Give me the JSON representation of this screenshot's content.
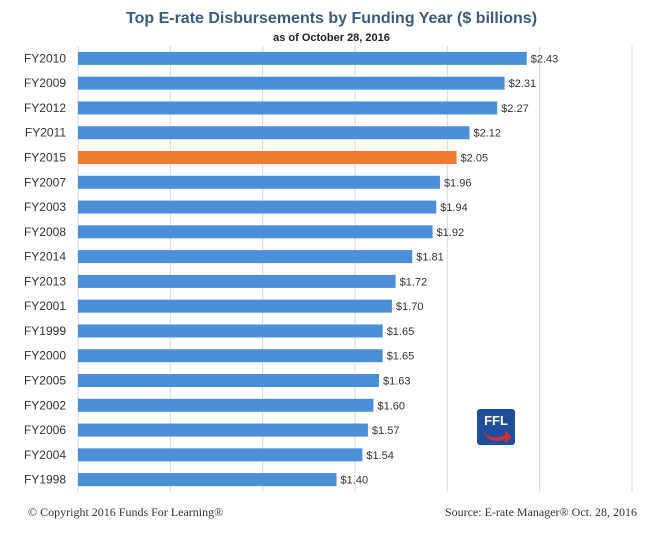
{
  "chart_data": {
    "type": "bar",
    "orientation": "horizontal",
    "title": "Top E-rate Disbursements by Funding Year ($ billions)",
    "subtitle": "as of October 28, 2016",
    "categories": [
      "FY2010",
      "FY2009",
      "FY2012",
      "FY2011",
      "FY2015",
      "FY2007",
      "FY2003",
      "FY2008",
      "FY2014",
      "FY2013",
      "FY2001",
      "FY1999",
      "FY2000",
      "FY2005",
      "FY2002",
      "FY2006",
      "FY2004",
      "FY1998"
    ],
    "values": [
      2.43,
      2.31,
      2.27,
      2.12,
      2.05,
      1.96,
      1.94,
      1.92,
      1.81,
      1.72,
      1.7,
      1.65,
      1.65,
      1.63,
      1.6,
      1.57,
      1.54,
      1.4
    ],
    "data_labels": [
      "$2.43",
      "$2.31",
      "$2.27",
      "$2.12",
      "$2.05",
      "$1.96",
      "$1.94",
      "$1.92",
      "$1.81",
      "$1.72",
      "$1.70",
      "$1.65",
      "$1.65",
      "$1.63",
      "$1.60",
      "$1.57",
      "$1.54",
      "$1.40"
    ],
    "highlight_category": "FY2015",
    "xlim": [
      0,
      3
    ],
    "x_gridlines": true,
    "xlabel": "",
    "ylabel": "",
    "legend": "none"
  },
  "colors": {
    "bar": "#4a8fd8",
    "bar_highlight": "#ee7d31",
    "gridline": "#d9d9d9",
    "title": "#3c5a7a"
  },
  "footer": {
    "copyright": "© Copyright 2016 Funds For Learning®",
    "source": "Source: E-rate Manager® Oct. 28, 2016"
  },
  "logo": {
    "text": "FFL",
    "icon": "ffl-logo-icon"
  }
}
